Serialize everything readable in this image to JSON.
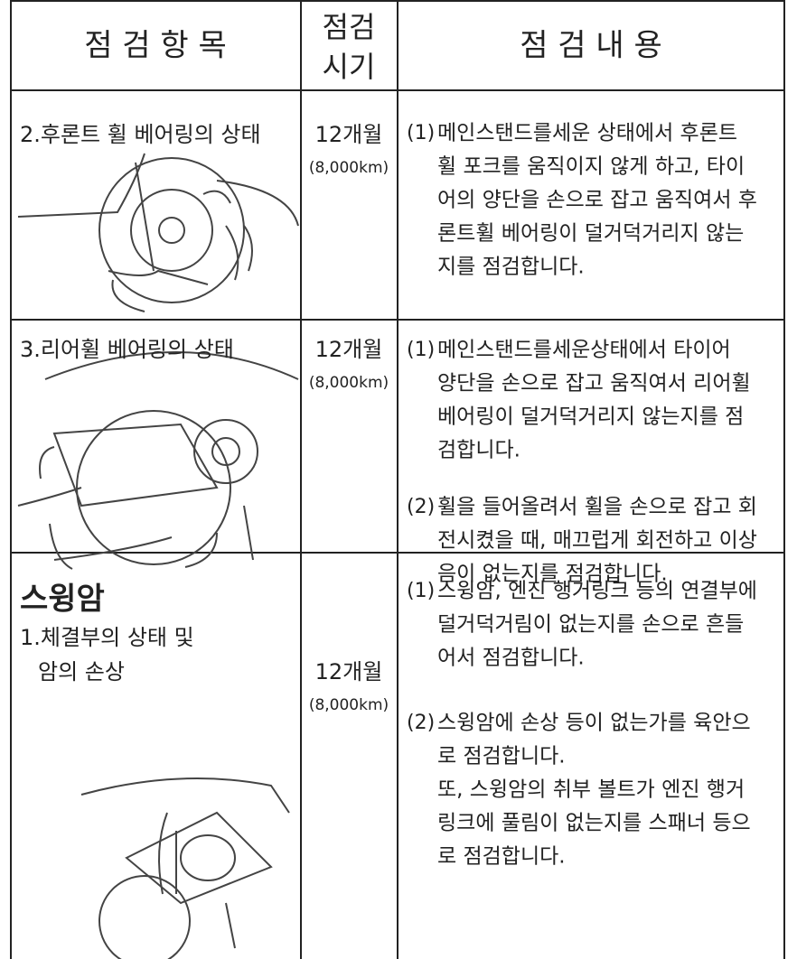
{
  "header": {
    "item": "점 검 항 목",
    "period": [
      "점검",
      "시기"
    ],
    "content": "점 검 내 용"
  },
  "rows": [
    {
      "item": [
        "2.후론트 휠 베어링의 상태"
      ],
      "period": "12개월",
      "period_sub": "(8,000km)",
      "contents": [
        {
          "marker": "(1)",
          "lines": [
            "메인스탠드를세운 상태에서 후론트",
            "휠 포크를 움직이지 않게 하고, 타이",
            "어의 양단을 손으로 잡고 움직여서 후",
            "론트휠 베어링이 덜거덕거리지 않는",
            "지를 점검합니다."
          ]
        }
      ]
    },
    {
      "item": [
        "3.리어휠 베어링의 상태"
      ],
      "period": "12개월",
      "period_sub": "(8,000km)",
      "contents": [
        {
          "marker": "(1)",
          "lines": [
            "메인스탠드를세운상태에서 타이어",
            "양단을 손으로 잡고 움직여서 리어휠",
            "베어링이 덜거덕거리지 않는지를 점",
            "검합니다."
          ]
        },
        {
          "marker": "(2)",
          "lines": [
            "휠을 들어올려서 휠을 손으로 잡고 회",
            "전시켰을 때, 매끄럽게 회전하고 이상",
            "음이 없는지를 점검합니다."
          ]
        }
      ]
    },
    {
      "section": "스윙암",
      "item": [
        "1.체결부의 상태 및",
        "암의 손상"
      ],
      "period": "12개월",
      "period_sub": "(8,000km)",
      "contents": [
        {
          "marker": "(1)",
          "lines": [
            "스윙암, 엔진 행거링크 등의 연결부에",
            "덜거덕거림이 없는지를 손으로 흔들",
            "어서 점검합니다."
          ]
        },
        {
          "marker": "(2)",
          "lines": [
            "스윙암에 손상 등이 없는가를 육안으",
            "로 점검합니다.",
            "또, 스윙암의 취부 볼트가 엔진 행거",
            "링크에 풀림이 없는지를 스패너 등으",
            "로 점검합니다."
          ]
        }
      ]
    }
  ]
}
